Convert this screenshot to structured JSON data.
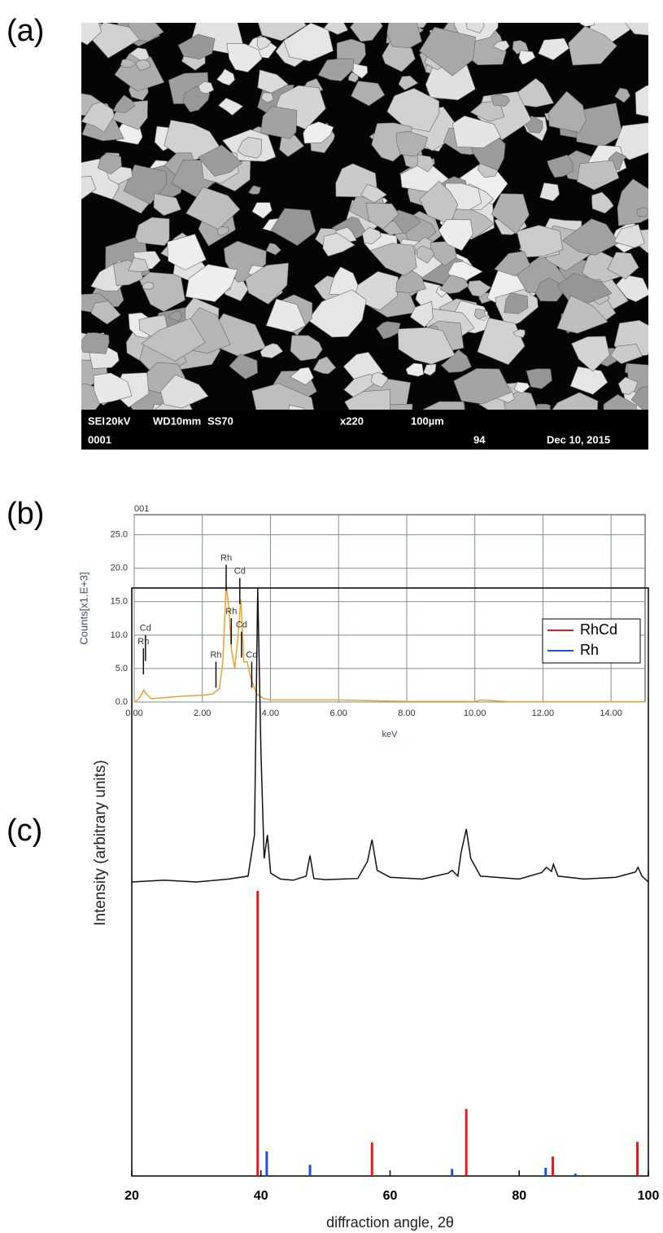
{
  "panel_labels": [
    "(a)",
    "(b)",
    "(c)"
  ],
  "sem_image": {
    "info_row_1": [
      "SEI",
      "20kV",
      "WD10mm",
      "SS70",
      "x220",
      "100µm"
    ],
    "info_row_2": [
      "0001",
      "94",
      "Dec 10, 2015"
    ]
  },
  "chart_data": [
    {
      "type": "line",
      "title": "001",
      "x_label": "keV",
      "y_label": "Counts[x1.E+3]",
      "grid": true,
      "xlim": [
        0,
        15
      ],
      "ylim": [
        0,
        28
      ],
      "xticks": [
        {
          "value": 0,
          "label": "0.00"
        },
        {
          "value": 2,
          "label": "2.00"
        },
        {
          "value": 4,
          "label": "4.00"
        },
        {
          "value": 6,
          "label": "6.00"
        },
        {
          "value": 8,
          "label": "8.00"
        },
        {
          "value": 10,
          "label": "10.00"
        },
        {
          "value": 12,
          "label": "12.00"
        },
        {
          "value": 14,
          "label": "14.00"
        }
      ],
      "yticks": [
        {
          "value": 0,
          "label": "0.0"
        },
        {
          "value": 5,
          "label": "5.0"
        },
        {
          "value": 10,
          "label": "10.0"
        },
        {
          "value": 15,
          "label": "15.0"
        },
        {
          "value": 20,
          "label": "20.0"
        },
        {
          "value": 25,
          "label": "25.0"
        }
      ],
      "x": [
        0,
        0.1,
        0.2,
        0.28,
        0.35,
        0.5,
        1,
        1.5,
        2,
        2.3,
        2.5,
        2.6,
        2.7,
        2.78,
        2.85,
        2.95,
        3.05,
        3.13,
        3.22,
        3.32,
        3.4,
        3.5,
        3.6,
        3.8,
        4,
        5,
        6,
        7,
        8,
        9,
        10,
        10.2,
        11,
        12,
        13,
        14,
        15
      ],
      "series": [
        {
          "color": "#f0a030",
          "values": [
            0,
            0.3,
            1,
            1.8,
            1.2,
            0.5,
            0.7,
            0.9,
            1,
            1.2,
            2,
            6,
            17.5,
            14,
            8,
            5,
            10,
            15.3,
            6,
            6,
            4,
            2.5,
            1.2,
            0.5,
            0.3,
            0.3,
            0.3,
            0.2,
            0.1,
            0.1,
            0.1,
            0.3,
            0.05,
            0.05,
            0.05,
            0.05,
            0.05
          ]
        }
      ],
      "annotations": [
        {
          "text": "Rh",
          "x": 0.27,
          "y": 9
        },
        {
          "text": "Cd",
          "x": 0.33,
          "y": 11
        },
        {
          "text": "Rh",
          "x": 2.4,
          "y": 7
        },
        {
          "text": "Rh",
          "x": 2.7,
          "y": 21.5
        },
        {
          "text": "Rh",
          "x": 2.85,
          "y": 13.5
        },
        {
          "text": "Cd",
          "x": 3.1,
          "y": 19.5
        },
        {
          "text": "Cd",
          "x": 3.15,
          "y": 11.5
        },
        {
          "text": "Cd",
          "x": 3.45,
          "y": 7
        }
      ]
    },
    {
      "type": "line",
      "x_label": "diffraction angle, 2θ",
      "y_label": "Intensity (arbitrary units)",
      "legend": "upper right",
      "xlim": [
        20,
        100
      ],
      "ylim": [
        0,
        100
      ],
      "xticks": [
        20,
        40,
        60,
        80,
        100
      ],
      "yticks": [],
      "x": [
        20,
        25,
        30,
        35,
        38,
        39,
        39.5,
        40,
        40.5,
        41,
        41.5,
        43,
        45,
        47,
        47.6,
        48.2,
        50,
        55,
        56.5,
        57.2,
        58,
        60,
        65,
        69,
        69.6,
        70.5,
        71,
        71.8,
        72.5,
        74,
        80,
        83.5,
        84.2,
        85,
        85.3,
        86,
        90,
        95,
        98,
        98.4,
        99,
        100
      ],
      "series": [
        {
          "color": "#111111",
          "values": [
            50,
            50.3,
            50,
            50.5,
            51,
            58,
            100,
            72,
            54,
            58,
            51.5,
            50.5,
            50.3,
            51,
            54.5,
            50.6,
            50.4,
            50.6,
            53.5,
            57.2,
            52,
            50.8,
            50.5,
            51.5,
            52,
            51,
            55,
            59,
            54,
            51,
            50.5,
            51.6,
            52.5,
            51.8,
            53,
            51,
            50.5,
            50.8,
            51.7,
            52.5,
            51,
            50
          ]
        }
      ],
      "sticks": [
        {
          "name": "RhCd",
          "color": "#e41a1c",
          "x": [
            39.5,
            57.2,
            71.8,
            85.2,
            98.3
          ],
          "values": [
            48.5,
            5.7,
            11.4,
            3.3,
            5.8
          ]
        },
        {
          "name": "Rh",
          "color": "#1f4fe0",
          "x": [
            40.9,
            47.6,
            69.6,
            84.1,
            88.7
          ],
          "values": [
            4.2,
            1.9,
            1.2,
            1.4,
            0.4
          ]
        }
      ]
    }
  ]
}
